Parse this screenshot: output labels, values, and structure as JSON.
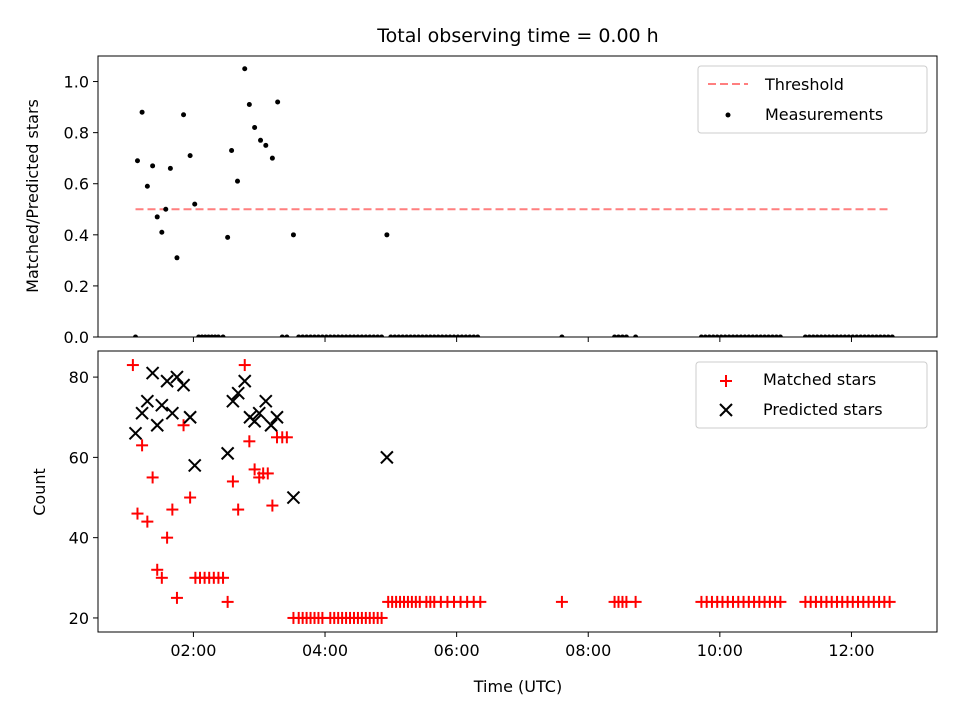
{
  "chart_data": [
    {
      "type": "scatter",
      "title": "Total observing time = 0.00 h",
      "xlabel": "",
      "ylabel": "Matched/Predicted stars",
      "ylim": [
        0,
        1.1
      ],
      "xlim": [
        0.55,
        13.3
      ],
      "yticks": [
        0.0,
        0.2,
        0.4,
        0.6,
        0.8,
        1.0
      ],
      "ytick_labels": [
        "0.0",
        "0.2",
        "0.4",
        "0.6",
        "0.8",
        "1.0"
      ],
      "threshold": {
        "name": "Threshold",
        "value": 0.5,
        "x_range": [
          1.12,
          12.6
        ],
        "color": "#ff7f7f"
      },
      "legend": {
        "position": "top-right",
        "entries": [
          "Threshold",
          "Measurements"
        ]
      },
      "series": [
        {
          "name": "Measurements",
          "color": "#000000",
          "points": [
            [
              1.12,
              0.0
            ],
            [
              1.15,
              0.69
            ],
            [
              1.22,
              0.88
            ],
            [
              1.3,
              0.59
            ],
            [
              1.38,
              0.67
            ],
            [
              1.45,
              0.47
            ],
            [
              1.52,
              0.41
            ],
            [
              1.58,
              0.5
            ],
            [
              1.65,
              0.66
            ],
            [
              1.75,
              0.31
            ],
            [
              1.85,
              0.87
            ],
            [
              1.95,
              0.71
            ],
            [
              2.02,
              0.52
            ],
            [
              2.08,
              0.0
            ],
            [
              2.13,
              0.0
            ],
            [
              2.18,
              0.0
            ],
            [
              2.23,
              0.0
            ],
            [
              2.28,
              0.0
            ],
            [
              2.33,
              0.0
            ],
            [
              2.38,
              0.0
            ],
            [
              2.45,
              0.0
            ],
            [
              2.52,
              0.39
            ],
            [
              2.58,
              0.73
            ],
            [
              2.67,
              0.61
            ],
            [
              2.78,
              1.05
            ],
            [
              2.85,
              0.91
            ],
            [
              2.93,
              0.82
            ],
            [
              3.02,
              0.77
            ],
            [
              3.1,
              0.75
            ],
            [
              3.2,
              0.7
            ],
            [
              3.28,
              0.92
            ],
            [
              3.35,
              0.0
            ],
            [
              3.42,
              0.0
            ],
            [
              3.52,
              0.4
            ],
            [
              3.6,
              0.0
            ],
            [
              3.66,
              0.0
            ],
            [
              3.72,
              0.0
            ],
            [
              3.78,
              0.0
            ],
            [
              3.84,
              0.0
            ],
            [
              3.9,
              0.0
            ],
            [
              3.96,
              0.0
            ],
            [
              4.02,
              0.0
            ],
            [
              4.08,
              0.0
            ],
            [
              4.14,
              0.0
            ],
            [
              4.2,
              0.0
            ],
            [
              4.26,
              0.0
            ],
            [
              4.32,
              0.0
            ],
            [
              4.38,
              0.0
            ],
            [
              4.44,
              0.0
            ],
            [
              4.5,
              0.0
            ],
            [
              4.56,
              0.0
            ],
            [
              4.62,
              0.0
            ],
            [
              4.68,
              0.0
            ],
            [
              4.74,
              0.0
            ],
            [
              4.8,
              0.0
            ],
            [
              4.86,
              0.0
            ],
            [
              4.94,
              0.4
            ],
            [
              5.0,
              0.0
            ],
            [
              5.06,
              0.0
            ],
            [
              5.12,
              0.0
            ],
            [
              5.18,
              0.0
            ],
            [
              5.24,
              0.0
            ],
            [
              5.3,
              0.0
            ],
            [
              5.36,
              0.0
            ],
            [
              5.42,
              0.0
            ],
            [
              5.48,
              0.0
            ],
            [
              5.54,
              0.0
            ],
            [
              5.6,
              0.0
            ],
            [
              5.66,
              0.0
            ],
            [
              5.72,
              0.0
            ],
            [
              5.78,
              0.0
            ],
            [
              5.84,
              0.0
            ],
            [
              5.9,
              0.0
            ],
            [
              5.96,
              0.0
            ],
            [
              6.02,
              0.0
            ],
            [
              6.08,
              0.0
            ],
            [
              6.14,
              0.0
            ],
            [
              6.2,
              0.0
            ],
            [
              6.26,
              0.0
            ],
            [
              6.32,
              0.0
            ],
            [
              7.6,
              0.0
            ],
            [
              8.4,
              0.0
            ],
            [
              8.46,
              0.0
            ],
            [
              8.52,
              0.0
            ],
            [
              8.58,
              0.0
            ],
            [
              8.72,
              0.0
            ],
            [
              9.72,
              0.0
            ],
            [
              9.78,
              0.0
            ],
            [
              9.84,
              0.0
            ],
            [
              9.9,
              0.0
            ],
            [
              9.96,
              0.0
            ],
            [
              10.02,
              0.0
            ],
            [
              10.08,
              0.0
            ],
            [
              10.14,
              0.0
            ],
            [
              10.2,
              0.0
            ],
            [
              10.26,
              0.0
            ],
            [
              10.32,
              0.0
            ],
            [
              10.38,
              0.0
            ],
            [
              10.44,
              0.0
            ],
            [
              10.5,
              0.0
            ],
            [
              10.56,
              0.0
            ],
            [
              10.62,
              0.0
            ],
            [
              10.68,
              0.0
            ],
            [
              10.74,
              0.0
            ],
            [
              10.8,
              0.0
            ],
            [
              10.86,
              0.0
            ],
            [
              10.92,
              0.0
            ],
            [
              11.3,
              0.0
            ],
            [
              11.36,
              0.0
            ],
            [
              11.42,
              0.0
            ],
            [
              11.48,
              0.0
            ],
            [
              11.54,
              0.0
            ],
            [
              11.6,
              0.0
            ],
            [
              11.66,
              0.0
            ],
            [
              11.72,
              0.0
            ],
            [
              11.78,
              0.0
            ],
            [
              11.84,
              0.0
            ],
            [
              11.9,
              0.0
            ],
            [
              11.96,
              0.0
            ],
            [
              12.02,
              0.0
            ],
            [
              12.08,
              0.0
            ],
            [
              12.14,
              0.0
            ],
            [
              12.2,
              0.0
            ],
            [
              12.26,
              0.0
            ],
            [
              12.32,
              0.0
            ],
            [
              12.38,
              0.0
            ],
            [
              12.44,
              0.0
            ],
            [
              12.5,
              0.0
            ],
            [
              12.56,
              0.0
            ],
            [
              12.62,
              0.0
            ]
          ]
        }
      ]
    },
    {
      "type": "scatter",
      "title": "",
      "xlabel": "Time (UTC)",
      "ylabel": "Count",
      "ylim": [
        16.5,
        86.5
      ],
      "xlim": [
        0.55,
        13.3
      ],
      "yticks": [
        20,
        40,
        60,
        80
      ],
      "ytick_labels": [
        "20",
        "40",
        "60",
        "80"
      ],
      "xticks": [
        2,
        4,
        6,
        8,
        10,
        12
      ],
      "xtick_labels": [
        "02:00",
        "04:00",
        "06:00",
        "08:00",
        "10:00",
        "12:00"
      ],
      "legend": {
        "position": "top-right",
        "entries": [
          "Matched stars",
          "Predicted stars"
        ]
      },
      "series": [
        {
          "name": "Matched stars",
          "color": "#ff0000",
          "marker": "plus",
          "points": [
            [
              1.08,
              83
            ],
            [
              1.15,
              46
            ],
            [
              1.22,
              63
            ],
            [
              1.3,
              44
            ],
            [
              1.38,
              55
            ],
            [
              1.45,
              32
            ],
            [
              1.52,
              30
            ],
            [
              1.6,
              40
            ],
            [
              1.68,
              47
            ],
            [
              1.75,
              25
            ],
            [
              1.85,
              68
            ],
            [
              1.95,
              50
            ],
            [
              2.03,
              30
            ],
            [
              2.1,
              30
            ],
            [
              2.17,
              30
            ],
            [
              2.24,
              30
            ],
            [
              2.31,
              30
            ],
            [
              2.38,
              30
            ],
            [
              2.45,
              30
            ],
            [
              2.52,
              24
            ],
            [
              2.6,
              54
            ],
            [
              2.68,
              47
            ],
            [
              2.78,
              83
            ],
            [
              2.85,
              64
            ],
            [
              2.93,
              57
            ],
            [
              3.0,
              55
            ],
            [
              3.06,
              56
            ],
            [
              3.13,
              56
            ],
            [
              3.2,
              48
            ],
            [
              3.27,
              65
            ],
            [
              3.35,
              65
            ],
            [
              3.42,
              65
            ],
            [
              3.52,
              20
            ],
            [
              3.6,
              20
            ],
            [
              3.66,
              20
            ],
            [
              3.72,
              20
            ],
            [
              3.78,
              20
            ],
            [
              3.84,
              20
            ],
            [
              3.9,
              20
            ],
            [
              3.96,
              20
            ],
            [
              4.08,
              20
            ],
            [
              4.14,
              20
            ],
            [
              4.2,
              20
            ],
            [
              4.26,
              20
            ],
            [
              4.32,
              20
            ],
            [
              4.38,
              20
            ],
            [
              4.44,
              20
            ],
            [
              4.5,
              20
            ],
            [
              4.56,
              20
            ],
            [
              4.62,
              20
            ],
            [
              4.68,
              20
            ],
            [
              4.74,
              20
            ],
            [
              4.8,
              20
            ],
            [
              4.86,
              20
            ],
            [
              4.96,
              24
            ],
            [
              5.02,
              24
            ],
            [
              5.08,
              24
            ],
            [
              5.14,
              24
            ],
            [
              5.2,
              24
            ],
            [
              5.26,
              24
            ],
            [
              5.32,
              24
            ],
            [
              5.38,
              24
            ],
            [
              5.44,
              24
            ],
            [
              5.54,
              24
            ],
            [
              5.6,
              24
            ],
            [
              5.66,
              24
            ],
            [
              5.76,
              24
            ],
            [
              5.86,
              24
            ],
            [
              5.96,
              24
            ],
            [
              6.06,
              24
            ],
            [
              6.16,
              24
            ],
            [
              6.26,
              24
            ],
            [
              6.36,
              24
            ],
            [
              7.6,
              24
            ],
            [
              8.4,
              24
            ],
            [
              8.46,
              24
            ],
            [
              8.52,
              24
            ],
            [
              8.58,
              24
            ],
            [
              8.72,
              24
            ],
            [
              9.72,
              24
            ],
            [
              9.8,
              24
            ],
            [
              9.88,
              24
            ],
            [
              9.96,
              24
            ],
            [
              10.04,
              24
            ],
            [
              10.12,
              24
            ],
            [
              10.2,
              24
            ],
            [
              10.28,
              24
            ],
            [
              10.36,
              24
            ],
            [
              10.44,
              24
            ],
            [
              10.52,
              24
            ],
            [
              10.6,
              24
            ],
            [
              10.68,
              24
            ],
            [
              10.76,
              24
            ],
            [
              10.84,
              24
            ],
            [
              10.92,
              24
            ],
            [
              11.3,
              24
            ],
            [
              11.38,
              24
            ],
            [
              11.46,
              24
            ],
            [
              11.54,
              24
            ],
            [
              11.62,
              24
            ],
            [
              11.7,
              24
            ],
            [
              11.78,
              24
            ],
            [
              11.86,
              24
            ],
            [
              11.94,
              24
            ],
            [
              12.02,
              24
            ],
            [
              12.1,
              24
            ],
            [
              12.18,
              24
            ],
            [
              12.26,
              24
            ],
            [
              12.34,
              24
            ],
            [
              12.42,
              24
            ],
            [
              12.5,
              24
            ],
            [
              12.58,
              24
            ]
          ]
        },
        {
          "name": "Predicted stars",
          "color": "#000000",
          "marker": "x",
          "points": [
            [
              1.12,
              66
            ],
            [
              1.22,
              71
            ],
            [
              1.3,
              74
            ],
            [
              1.38,
              81
            ],
            [
              1.45,
              68
            ],
            [
              1.52,
              73
            ],
            [
              1.6,
              79
            ],
            [
              1.68,
              71
            ],
            [
              1.75,
              80
            ],
            [
              1.85,
              78
            ],
            [
              1.95,
              70
            ],
            [
              2.02,
              58
            ],
            [
              2.52,
              61
            ],
            [
              2.6,
              74
            ],
            [
              2.68,
              76
            ],
            [
              2.78,
              79
            ],
            [
              2.86,
              70
            ],
            [
              2.93,
              69
            ],
            [
              3.0,
              71
            ],
            [
              3.1,
              74
            ],
            [
              3.18,
              68
            ],
            [
              3.27,
              70
            ],
            [
              3.52,
              50
            ],
            [
              4.94,
              60
            ]
          ]
        }
      ]
    }
  ]
}
